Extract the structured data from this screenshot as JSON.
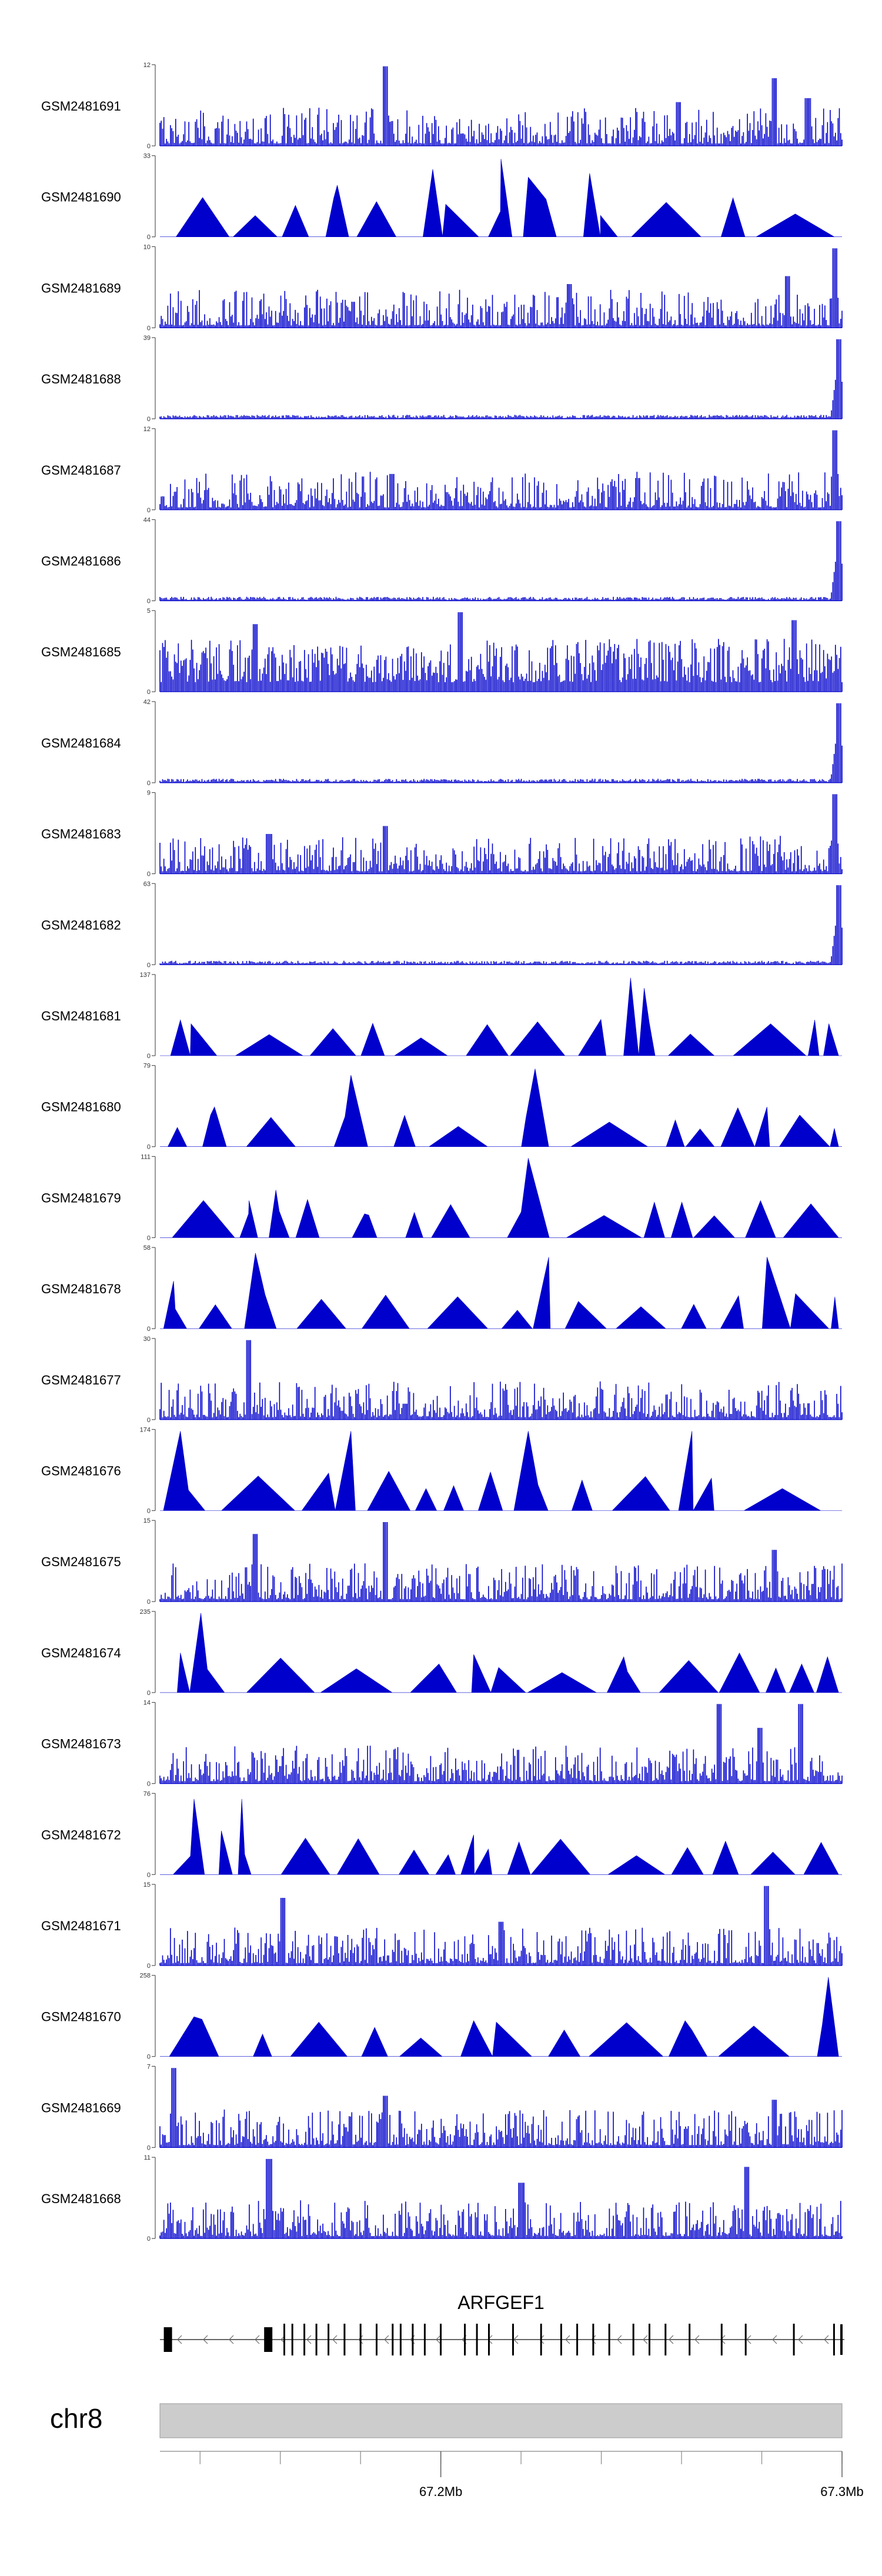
{
  "chart_data": {
    "type": "area",
    "title": "",
    "xlabel": "",
    "ylabel": "",
    "region": {
      "chromosome": "chr8",
      "xlim": [
        67130000,
        67300000
      ],
      "ticks": [
        67.2,
        67.3
      ],
      "tick_labels": [
        "67.2Mb",
        "67.3Mb"
      ],
      "minor_ticks": [
        67.14,
        67.16,
        67.18,
        67.2,
        67.22,
        67.24,
        67.26,
        67.28,
        67.3,
        67.32
      ]
    },
    "gene": {
      "name": "ARFGEF1",
      "strand": "-",
      "start": 67.13,
      "end": 67.3,
      "exons": [
        67.132,
        67.157,
        67.161,
        67.163,
        67.166,
        67.169,
        67.172,
        67.176,
        67.18,
        67.184,
        67.188,
        67.19,
        67.193,
        67.196,
        67.2,
        67.206,
        67.209,
        67.212,
        67.218,
        67.225,
        67.23,
        67.234,
        67.238,
        67.242,
        67.248,
        67.252,
        67.256,
        67.262,
        67.27,
        67.276,
        67.288,
        67.298
      ]
    },
    "series": [
      {
        "name": "GSM2481691",
        "ymax": 12,
        "profile": "noise",
        "peaks": [
          [
            0.33,
            1.0
          ],
          [
            0.9,
            0.85
          ],
          [
            0.95,
            0.6
          ],
          [
            0.76,
            0.55
          ]
        ]
      },
      {
        "name": "GSM2481690",
        "ymax": 33,
        "profile": "triangles",
        "peaks": [
          [
            0.26,
            0.65
          ],
          [
            0.5,
            0.98
          ],
          [
            0.4,
            0.85
          ],
          [
            0.54,
            0.75
          ],
          [
            0.63,
            0.8
          ]
        ]
      },
      {
        "name": "GSM2481689",
        "ymax": 10,
        "profile": "noise",
        "peaks": [
          [
            0.99,
            1.0
          ],
          [
            0.92,
            0.65
          ],
          [
            0.6,
            0.55
          ]
        ]
      },
      {
        "name": "GSM2481688",
        "ymax": 39,
        "profile": "edge",
        "peaks": [
          [
            0.995,
            1.0
          ]
        ]
      },
      {
        "name": "GSM2481687",
        "ymax": 12,
        "profile": "noise",
        "peaks": [
          [
            0.99,
            1.0
          ],
          [
            0.34,
            0.45
          ],
          [
            0.7,
            0.4
          ]
        ]
      },
      {
        "name": "GSM2481686",
        "ymax": 44,
        "profile": "edge",
        "peaks": [
          [
            0.995,
            1.0
          ]
        ]
      },
      {
        "name": "GSM2481685",
        "ymax": 5,
        "profile": "dense",
        "peaks": [
          [
            0.44,
            1.0
          ],
          [
            0.93,
            0.9
          ],
          [
            0.14,
            0.85
          ]
        ]
      },
      {
        "name": "GSM2481684",
        "ymax": 42,
        "profile": "edge",
        "peaks": [
          [
            0.995,
            1.0
          ]
        ]
      },
      {
        "name": "GSM2481683",
        "ymax": 9,
        "profile": "noise",
        "peaks": [
          [
            0.99,
            1.0
          ],
          [
            0.33,
            0.6
          ],
          [
            0.16,
            0.5
          ]
        ]
      },
      {
        "name": "GSM2481682",
        "ymax": 63,
        "profile": "edge",
        "peaks": [
          [
            0.995,
            1.0
          ]
        ]
      },
      {
        "name": "GSM2481681",
        "ymax": 137,
        "profile": "triangles",
        "peaks": [
          [
            0.69,
            0.98
          ],
          [
            0.71,
            0.85
          ],
          [
            0.03,
            0.45
          ],
          [
            0.96,
            0.45
          ]
        ]
      },
      {
        "name": "GSM2481680",
        "ymax": 79,
        "profile": "triangles",
        "peaks": [
          [
            0.55,
            0.98
          ],
          [
            0.28,
            0.9
          ],
          [
            0.08,
            0.5
          ],
          [
            0.89,
            0.5
          ]
        ]
      },
      {
        "name": "GSM2481679",
        "ymax": 111,
        "profile": "triangles",
        "peaks": [
          [
            0.54,
            1.0
          ],
          [
            0.17,
            0.6
          ],
          [
            0.13,
            0.3
          ],
          [
            0.3,
            0.3
          ]
        ]
      },
      {
        "name": "GSM2481678",
        "ymax": 58,
        "profile": "triangles",
        "peaks": [
          [
            0.14,
            0.95
          ],
          [
            0.57,
            0.9
          ],
          [
            0.89,
            0.9
          ],
          [
            0.02,
            0.6
          ]
        ]
      },
      {
        "name": "GSM2481677",
        "ymax": 30,
        "profile": "noise",
        "peaks": [
          [
            0.13,
            1.0
          ],
          [
            0.36,
            0.2
          ],
          [
            0.88,
            0.15
          ]
        ]
      },
      {
        "name": "GSM2481676",
        "ymax": 174,
        "profile": "triangles",
        "peaks": [
          [
            0.03,
            1.0
          ],
          [
            0.28,
            1.0
          ],
          [
            0.54,
            1.0
          ],
          [
            0.78,
            1.0
          ]
        ]
      },
      {
        "name": "GSM2481675",
        "ymax": 15,
        "profile": "noise",
        "peaks": [
          [
            0.33,
            1.0
          ],
          [
            0.14,
            0.85
          ],
          [
            0.9,
            0.65
          ]
        ]
      },
      {
        "name": "GSM2481674",
        "ymax": 235,
        "profile": "triangles",
        "peaks": [
          [
            0.06,
            1.0
          ],
          [
            0.46,
            0.48
          ],
          [
            0.03,
            0.5
          ],
          [
            0.68,
            0.45
          ]
        ]
      },
      {
        "name": "GSM2481673",
        "ymax": 14,
        "profile": "noise",
        "peaks": [
          [
            0.82,
            1.0
          ],
          [
            0.94,
            1.0
          ],
          [
            0.88,
            0.7
          ]
        ]
      },
      {
        "name": "GSM2481672",
        "ymax": 76,
        "profile": "triangles",
        "peaks": [
          [
            0.05,
            0.95
          ],
          [
            0.12,
            0.95
          ],
          [
            0.46,
            0.5
          ],
          [
            0.09,
            0.55
          ]
        ]
      },
      {
        "name": "GSM2481671",
        "ymax": 15,
        "profile": "noise",
        "peaks": [
          [
            0.89,
            1.0
          ],
          [
            0.18,
            0.85
          ],
          [
            0.5,
            0.55
          ]
        ]
      },
      {
        "name": "GSM2481670",
        "ymax": 258,
        "profile": "triangles",
        "peaks": [
          [
            0.98,
            1.0
          ],
          [
            0.46,
            0.45
          ],
          [
            0.05,
            0.5
          ],
          [
            0.77,
            0.45
          ]
        ]
      },
      {
        "name": "GSM2481669",
        "ymax": 7,
        "profile": "noise",
        "peaks": [
          [
            0.02,
            1.0
          ],
          [
            0.33,
            0.65
          ],
          [
            0.9,
            0.6
          ]
        ]
      },
      {
        "name": "GSM2481668",
        "ymax": 11,
        "profile": "noise",
        "peaks": [
          [
            0.16,
            1.0
          ],
          [
            0.86,
            0.9
          ],
          [
            0.53,
            0.7
          ]
        ]
      }
    ]
  }
}
